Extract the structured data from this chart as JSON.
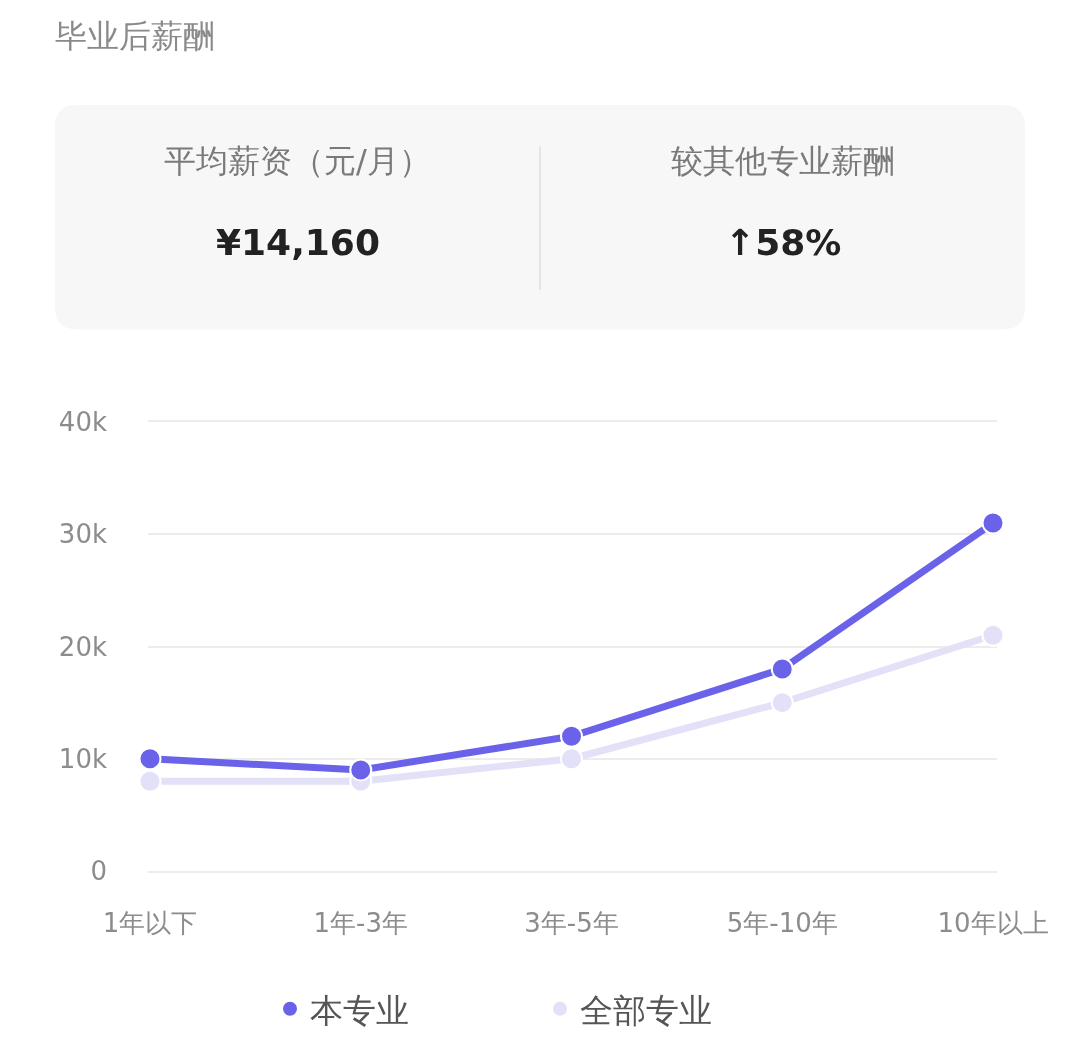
{
  "chart_data": [
    {
      "type": "other",
      "title": "毕业后薪酬",
      "annotations": [
        "平均薪资（元/月）",
        "¥14,160",
        "较其他专业薪酬",
        "↑58%"
      ]
    },
    {
      "type": "line",
      "categories": [
        "1年以下",
        "1年-3年",
        "3年-5年",
        "5年-10年",
        "10年以上"
      ],
      "series": [
        {
          "name": "本专业",
          "color": "#6b62ea",
          "values": [
            10000,
            9000,
            12000,
            18000,
            31000
          ]
        },
        {
          "name": "全部专业",
          "color": "#e2e1f8",
          "values": [
            8000,
            8000,
            10000,
            15000,
            21000
          ]
        }
      ],
      "ylim": [
        0,
        40000
      ],
      "yticks": [
        0,
        {
          "value": 10000,
          "label": "10k"
        },
        {
          "value": 20000,
          "label": "20k"
        },
        {
          "value": 30000,
          "label": "30k"
        },
        {
          "value": 40000,
          "label": "40k"
        }
      ],
      "grid": "y",
      "legend": "bottom",
      "marker": "circle",
      "line_style": "solid"
    }
  ]
}
